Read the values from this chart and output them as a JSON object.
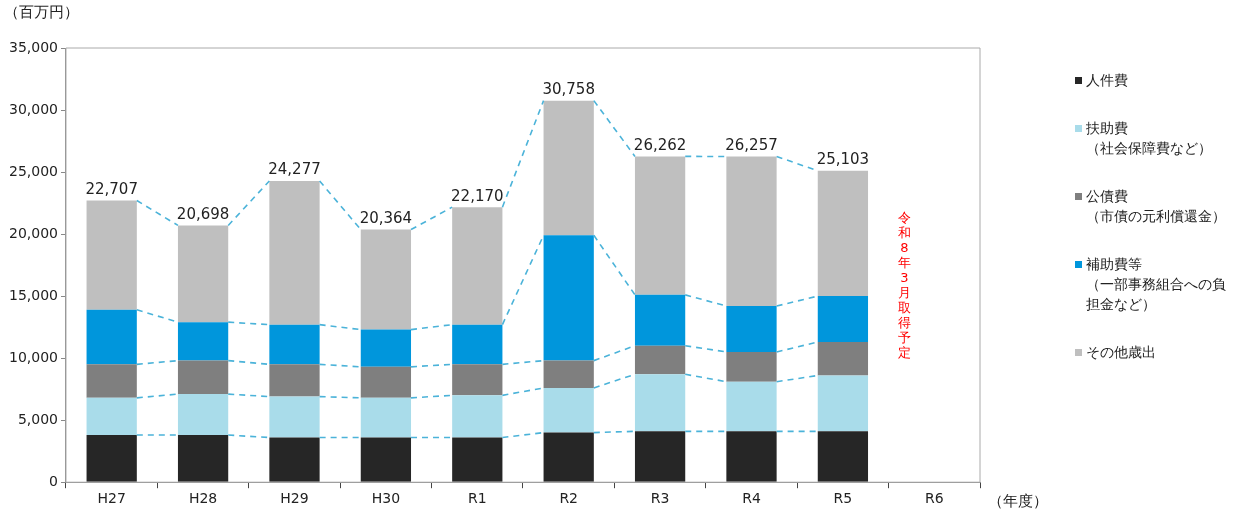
{
  "chart_data": {
    "type": "bar",
    "stacked": true,
    "ylabel": "（百万円）",
    "xlabel": "（年度）",
    "categories": [
      "H27",
      "H28",
      "H29",
      "H30",
      "R1",
      "R2",
      "R3",
      "R4",
      "R5",
      "R6"
    ],
    "series": [
      {
        "name": "人件費",
        "color": "#262626",
        "values": [
          3800,
          3800,
          3600,
          3600,
          3600,
          4000,
          4100,
          4100,
          4100,
          null
        ]
      },
      {
        "name": "扶助費（社会保障費など）",
        "color": "#a9dcea",
        "values": [
          3000,
          3300,
          3300,
          3200,
          3400,
          3600,
          4600,
          4000,
          4500,
          null
        ]
      },
      {
        "name": "公債費（市債の元利償還金）",
        "color": "#7f7f7f",
        "values": [
          2700,
          2700,
          2600,
          2500,
          2500,
          2200,
          2300,
          2400,
          2700,
          null
        ]
      },
      {
        "name": "補助費等（一部事務組合への負担金など）",
        "color": "#0096dc",
        "values": [
          4400,
          3100,
          3200,
          3000,
          3200,
          10100,
          4100,
          3700,
          3700,
          null
        ]
      },
      {
        "name": "その他歳出",
        "color": "#bfbfbf",
        "values": [
          8807,
          7798,
          11577,
          8064,
          9470,
          10858,
          11162,
          12057,
          10103,
          null
        ]
      }
    ],
    "totals": [
      "22,707",
      "20,698",
      "24,277",
      "20,364",
      "22,170",
      "30,758",
      "26,262",
      "26,257",
      "25,103",
      null
    ],
    "ylim": [
      0,
      35000
    ],
    "yticks": [
      {
        "value": 0,
        "label": "0"
      },
      {
        "value": 5000,
        "label": "5,000"
      },
      {
        "value": 10000,
        "label": "10,000"
      },
      {
        "value": 15000,
        "label": "15,000"
      },
      {
        "value": 20000,
        "label": "20,000"
      },
      {
        "value": 25000,
        "label": "25,000"
      },
      {
        "value": 30000,
        "label": "30,000"
      },
      {
        "value": 35000,
        "label": "35,000"
      }
    ],
    "grid": false,
    "legend": "right",
    "annotations": [
      "令和8年3月取得予定"
    ]
  }
}
